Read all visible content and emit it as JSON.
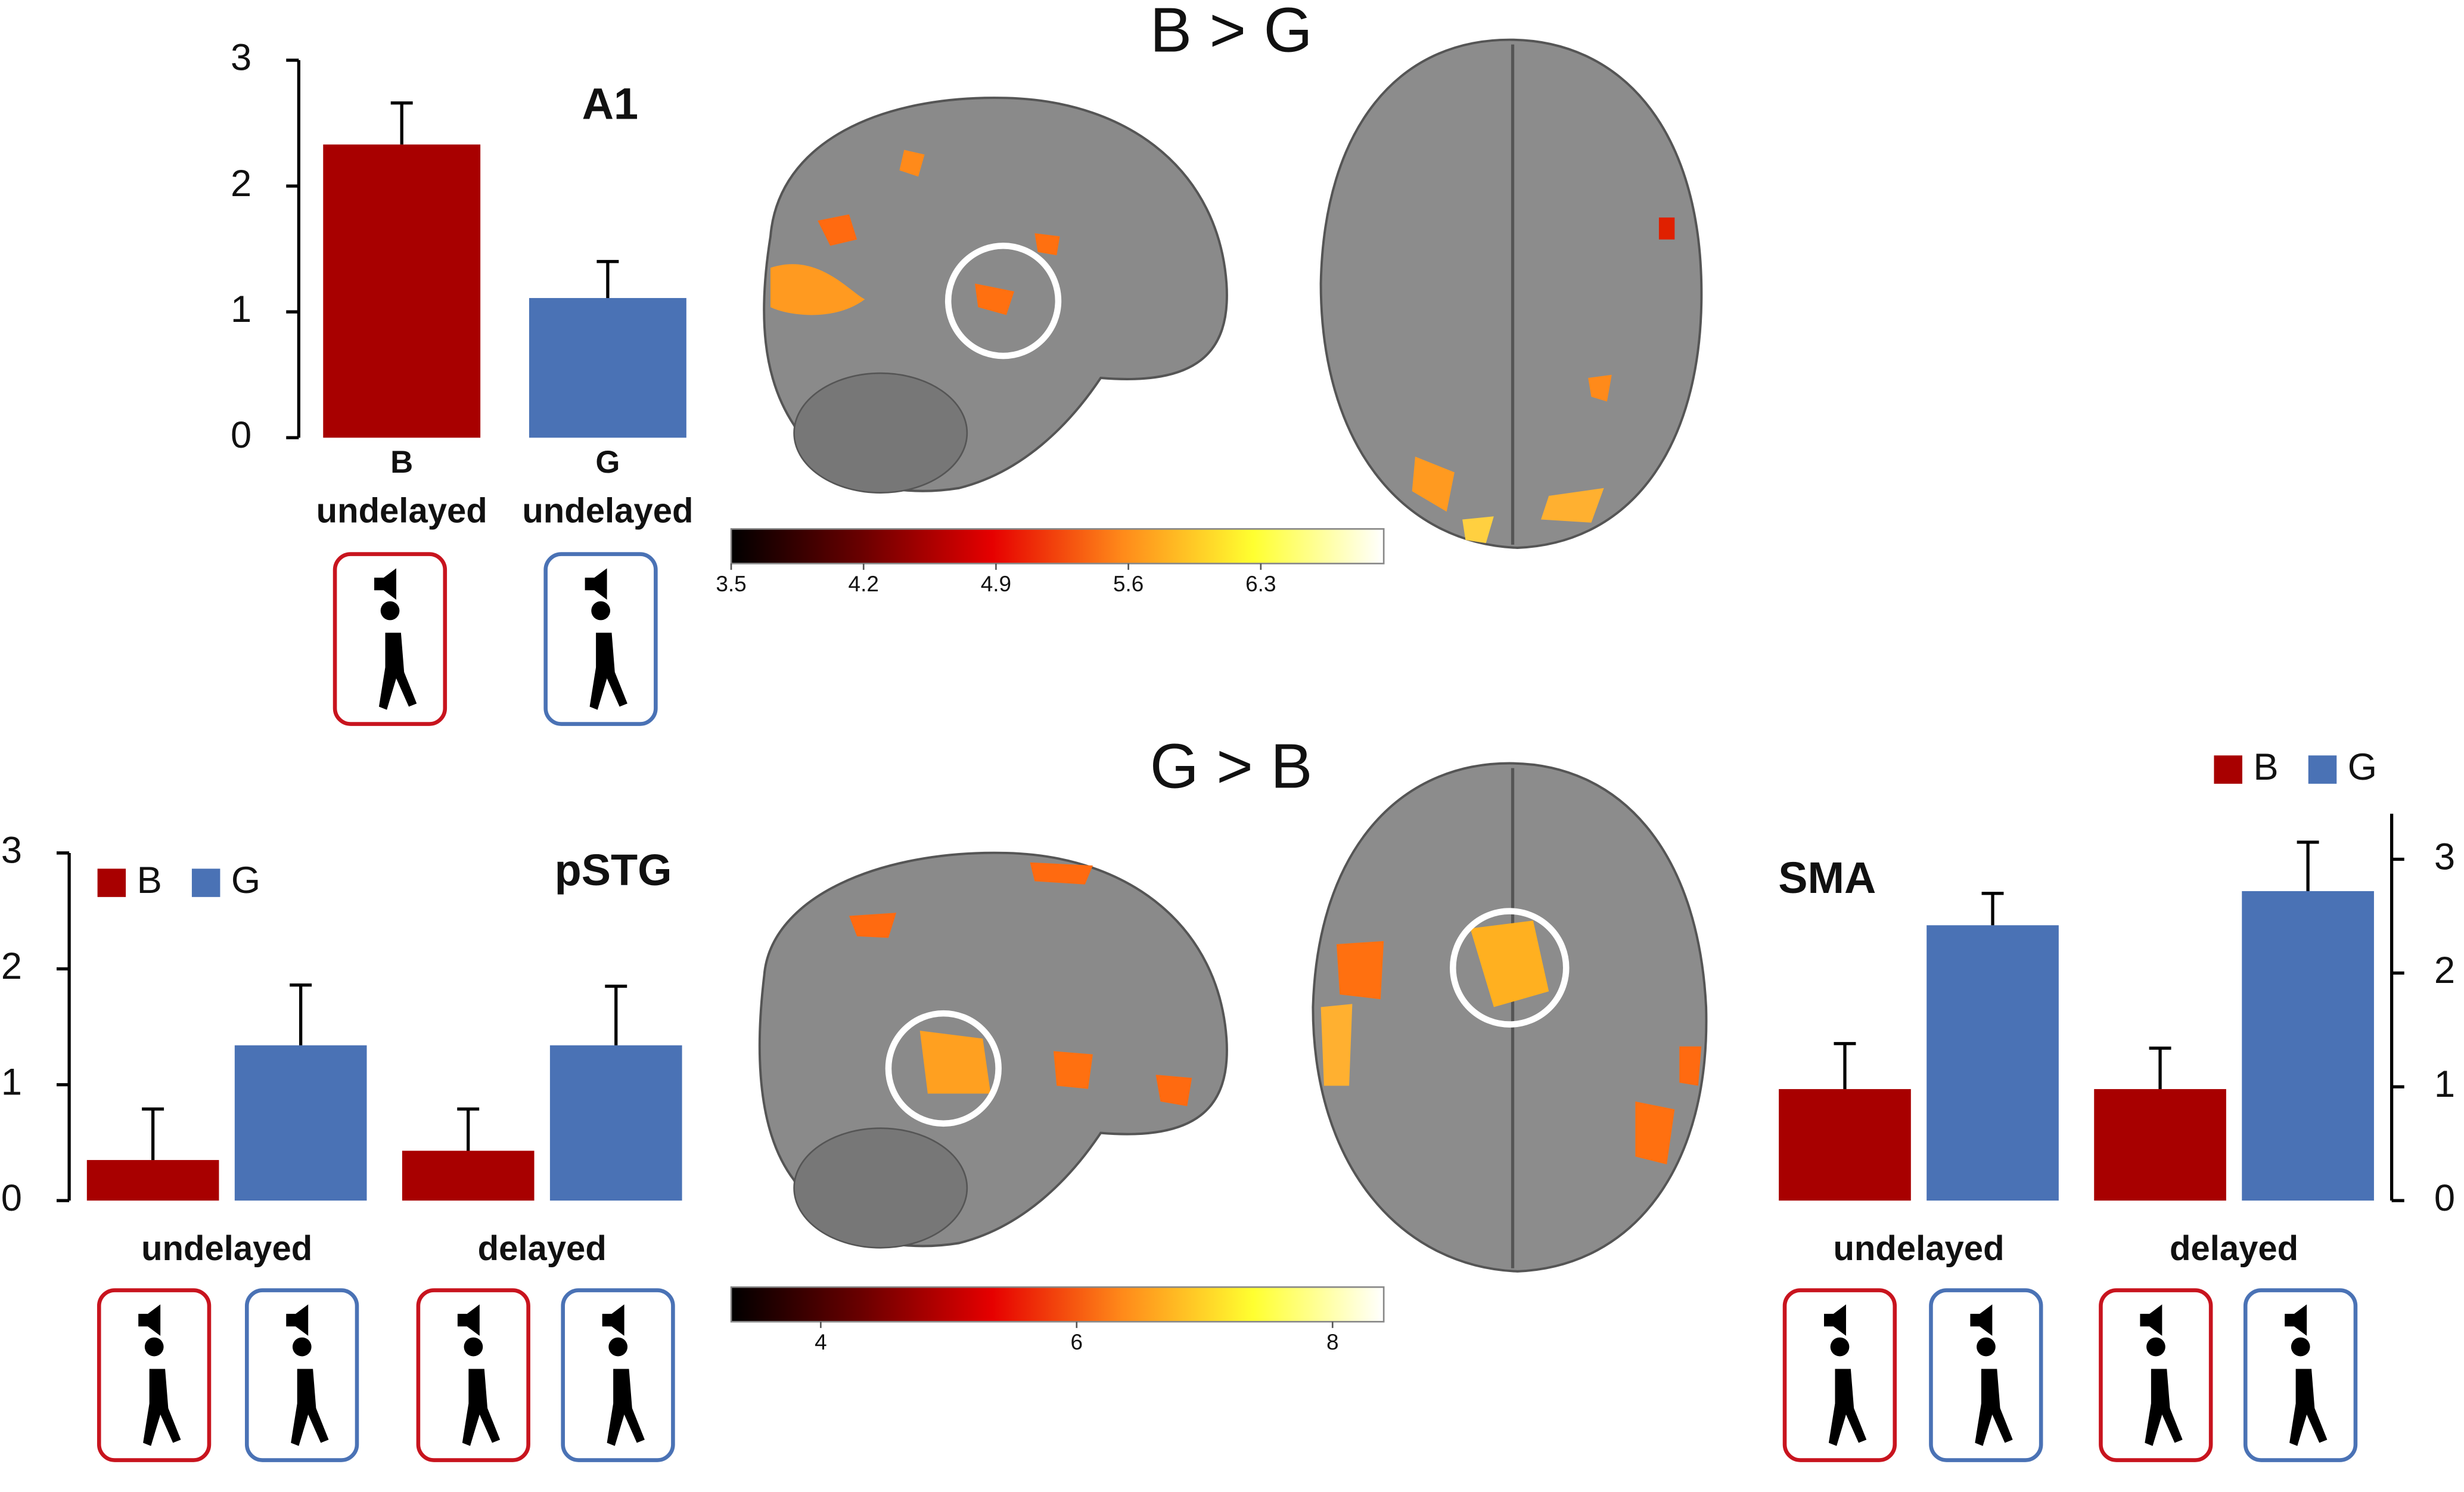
{
  "chart_data": [
    {
      "type": "bar",
      "title": "A1",
      "categories": [
        "B",
        "G"
      ],
      "category_sublabels": [
        "undelayed",
        "undelayed"
      ],
      "values": [
        2.33,
        1.11
      ],
      "errors": [
        0.33,
        0.29
      ],
      "colors": [
        "#a80000",
        "#4a72b5"
      ],
      "ylim": [
        0,
        3
      ],
      "yticks": [
        0,
        1,
        2,
        3
      ]
    },
    {
      "type": "colorbar",
      "title": "B > G",
      "colormap": [
        "#000000",
        "#6a0000",
        "#e60000",
        "#ff8a1a",
        "#ffff30",
        "#ffffff"
      ],
      "xlim": [
        3.5,
        6.95
      ],
      "xticks": [
        3.5,
        4.2,
        4.9,
        5.6,
        6.3
      ]
    },
    {
      "type": "grouped_bar",
      "title": "pSTG",
      "categories": [
        "undelayed",
        "delayed"
      ],
      "series": [
        {
          "name": "B",
          "color": "#a80000",
          "values": [
            0.35,
            0.43
          ],
          "errors": [
            0.44,
            0.36
          ]
        },
        {
          "name": "G",
          "color": "#4a72b5",
          "values": [
            1.34,
            1.34
          ],
          "errors": [
            0.52,
            0.51
          ]
        }
      ],
      "ylim": [
        0,
        3
      ],
      "yticks": [
        0,
        1,
        2,
        3
      ],
      "legend": "upper left"
    },
    {
      "type": "colorbar",
      "title": "G > B",
      "colormap": [
        "#000000",
        "#6a0000",
        "#e60000",
        "#ff8a1a",
        "#ffff30",
        "#ffffff"
      ],
      "xlim": [
        3.3,
        8.4
      ],
      "xticks": [
        4,
        6,
        8
      ]
    },
    {
      "type": "grouped_bar",
      "title": "SMA",
      "categories": [
        "undelayed",
        "delayed"
      ],
      "series": [
        {
          "name": "B",
          "color": "#a80000",
          "values": [
            0.98,
            0.98
          ],
          "errors": [
            0.4,
            0.36
          ]
        },
        {
          "name": "G",
          "color": "#4a72b5",
          "values": [
            2.42,
            2.72
          ],
          "errors": [
            0.28,
            0.43
          ]
        }
      ],
      "ylim": [
        0,
        3.4
      ],
      "yticks": [
        0,
        1,
        2,
        3
      ],
      "yaxis": "right",
      "legend": "upper right"
    }
  ]
}
